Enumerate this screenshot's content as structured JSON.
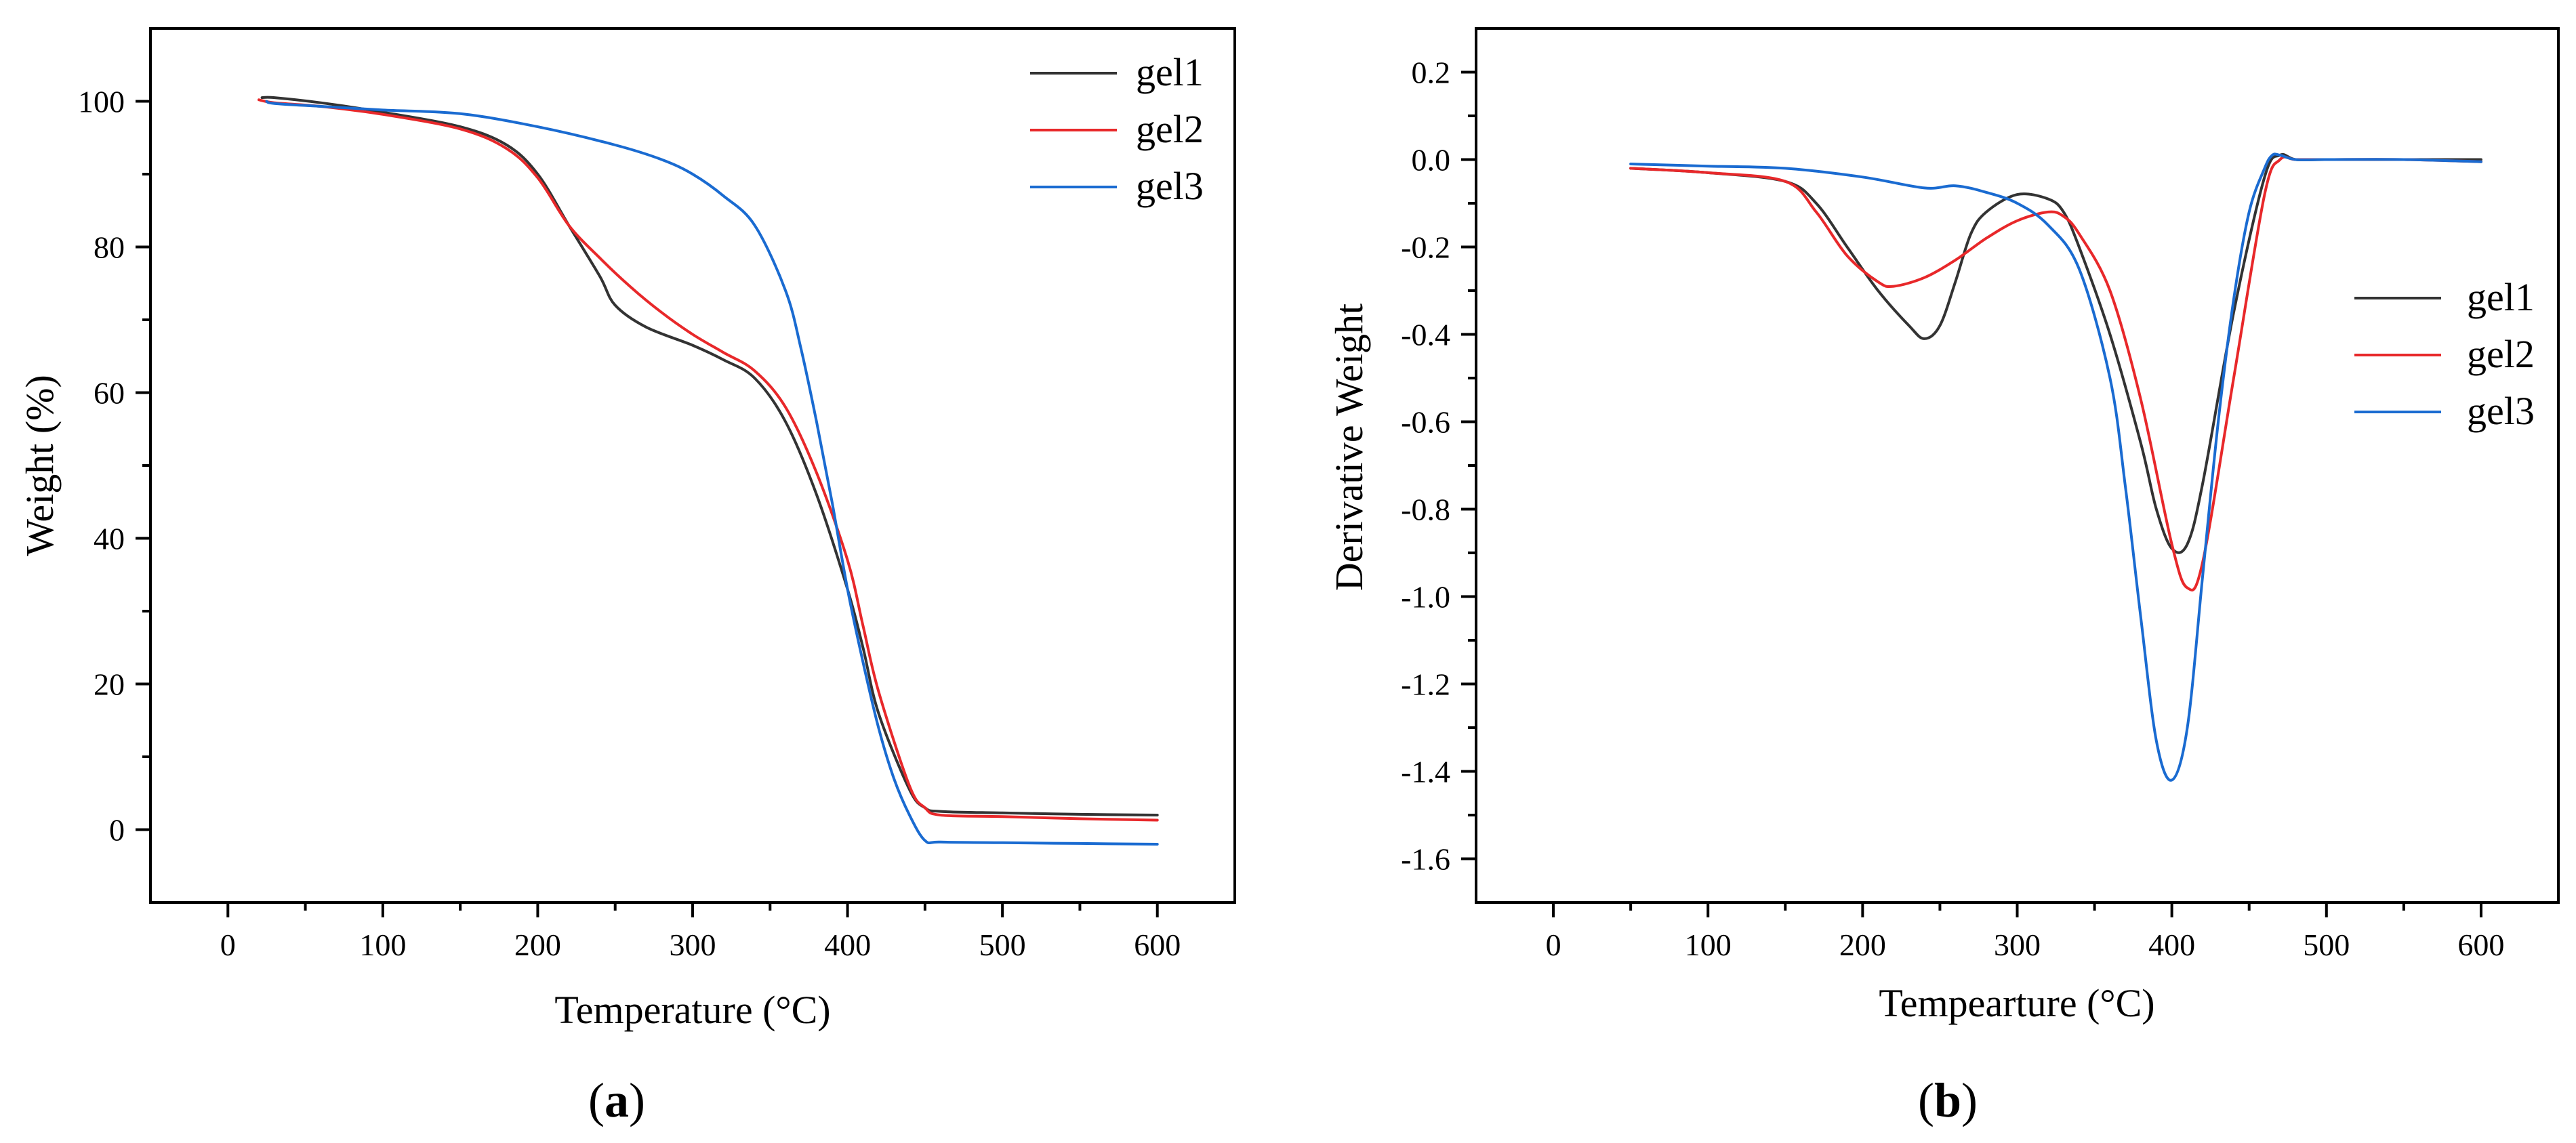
{
  "chart_data": [
    {
      "panel": "a",
      "type": "line",
      "caption_letter": "a",
      "xlabel": "Temperature (°C)",
      "ylabel": "Weight (%)",
      "xlim": [
        -50,
        650
      ],
      "ylim": [
        -10,
        110
      ],
      "xticks": [
        0,
        100,
        200,
        300,
        400,
        500,
        600
      ],
      "yticks": [
        0,
        20,
        40,
        60,
        80,
        100
      ],
      "xtick_labels": [
        "0",
        "100",
        "200",
        "300",
        "400",
        "500",
        "600"
      ],
      "ytick_labels": [
        "0",
        "20",
        "40",
        "60",
        "80",
        "100"
      ],
      "legend_position": "top-right",
      "series": [
        {
          "name": "gel1",
          "color": "#333333",
          "x": [
            22,
            30,
            60,
            100,
            150,
            180,
            200,
            220,
            240,
            250,
            270,
            300,
            320,
            340,
            360,
            380,
            400,
            410,
            420,
            440,
            450,
            460,
            500,
            550,
            600
          ],
          "y": [
            100.5,
            100.5,
            99.8,
            98.5,
            96.5,
            94,
            90,
            83,
            76,
            72,
            69,
            66.5,
            64.5,
            62,
            56,
            46,
            33,
            25,
            16,
            5.5,
            3,
            2.5,
            2.3,
            2.1,
            2.0
          ]
        },
        {
          "name": "gel2",
          "color": "#e8282a",
          "x": [
            20,
            30,
            60,
            100,
            150,
            180,
            200,
            220,
            240,
            260,
            280,
            300,
            320,
            340,
            360,
            380,
            400,
            410,
            420,
            440,
            450,
            460,
            500,
            550,
            600
          ],
          "y": [
            100.2,
            99.8,
            99.3,
            98.2,
            96.2,
            93.5,
            89.5,
            83,
            78.5,
            74.5,
            71,
            68,
            65.5,
            63,
            58,
            49,
            37,
            28,
            19,
            6,
            3,
            2,
            1.8,
            1.5,
            1.3
          ]
        },
        {
          "name": "gel3",
          "color": "#1a6bd1",
          "x": [
            25,
            30,
            60,
            100,
            150,
            200,
            250,
            280,
            300,
            320,
            340,
            360,
            370,
            380,
            390,
            400,
            410,
            420,
            430,
            440,
            450,
            460,
            500,
            550,
            600
          ],
          "y": [
            100,
            99.7,
            99.3,
            98.8,
            98.3,
            96.5,
            94,
            92,
            90,
            87,
            83,
            74,
            66,
            56,
            45,
            33,
            23,
            14,
            7,
            2,
            -1.5,
            -1.7,
            -1.8,
            -1.9,
            -2.0
          ]
        }
      ]
    },
    {
      "panel": "b",
      "type": "line",
      "caption_letter": "b",
      "xlabel": "Tempearture (°C)",
      "ylabel": "Derivative Weight",
      "xlim": [
        -50,
        650
      ],
      "ylim": [
        -1.7,
        0.3
      ],
      "xticks": [
        0,
        100,
        200,
        300,
        400,
        500,
        600
      ],
      "yticks": [
        0.2,
        0.0,
        -0.2,
        -0.4,
        -0.6,
        -0.8,
        -1.0,
        -1.2,
        -1.4,
        -1.6
      ],
      "xtick_labels": [
        "0",
        "100",
        "200",
        "300",
        "400",
        "500",
        "600"
      ],
      "ytick_labels": [
        "0.2",
        "0.0",
        "-0.2",
        "-0.4",
        "-0.6",
        "-0.8",
        "-1.0",
        "-1.2",
        "-1.4",
        "-1.6"
      ],
      "legend_position": "right",
      "series": [
        {
          "name": "gel1",
          "color": "#333333",
          "x": [
            50,
            100,
            150,
            170,
            190,
            210,
            230,
            240,
            250,
            260,
            270,
            280,
            300,
            320,
            330,
            340,
            360,
            380,
            390,
            400,
            410,
            420,
            440,
            460,
            470,
            480,
            500,
            550,
            600
          ],
          "y": [
            -0.02,
            -0.03,
            -0.05,
            -0.1,
            -0.2,
            -0.3,
            -0.38,
            -0.41,
            -0.38,
            -0.28,
            -0.17,
            -0.12,
            -0.08,
            -0.09,
            -0.12,
            -0.2,
            -0.4,
            -0.65,
            -0.8,
            -0.89,
            -0.88,
            -0.74,
            -0.35,
            -0.04,
            0.01,
            0.0,
            0.0,
            0.0,
            0.0
          ]
        },
        {
          "name": "gel2",
          "color": "#e8282a",
          "x": [
            50,
            100,
            150,
            170,
            190,
            210,
            220,
            240,
            260,
            280,
            300,
            320,
            330,
            340,
            360,
            380,
            400,
            410,
            420,
            440,
            460,
            470,
            480,
            500,
            550,
            600
          ],
          "y": [
            -0.02,
            -0.03,
            -0.05,
            -0.12,
            -0.22,
            -0.28,
            -0.29,
            -0.27,
            -0.23,
            -0.18,
            -0.14,
            -0.12,
            -0.13,
            -0.17,
            -0.3,
            -0.55,
            -0.88,
            -0.98,
            -0.92,
            -0.5,
            -0.08,
            0.0,
            0.0,
            0.0,
            0.0,
            -0.005
          ]
        },
        {
          "name": "gel3",
          "color": "#1a6bd1",
          "x": [
            50,
            100,
            150,
            200,
            240,
            260,
            280,
            300,
            320,
            340,
            360,
            370,
            380,
            390,
            400,
            410,
            420,
            430,
            440,
            450,
            460,
            465,
            470,
            480,
            500,
            550,
            600
          ],
          "y": [
            -0.01,
            -0.015,
            -0.02,
            -0.04,
            -0.065,
            -0.06,
            -0.075,
            -0.1,
            -0.15,
            -0.25,
            -0.5,
            -0.75,
            -1.05,
            -1.33,
            -1.42,
            -1.3,
            -0.95,
            -0.6,
            -0.32,
            -0.12,
            -0.02,
            0.01,
            0.01,
            0.0,
            0.0,
            0.0,
            -0.005
          ]
        }
      ]
    }
  ]
}
